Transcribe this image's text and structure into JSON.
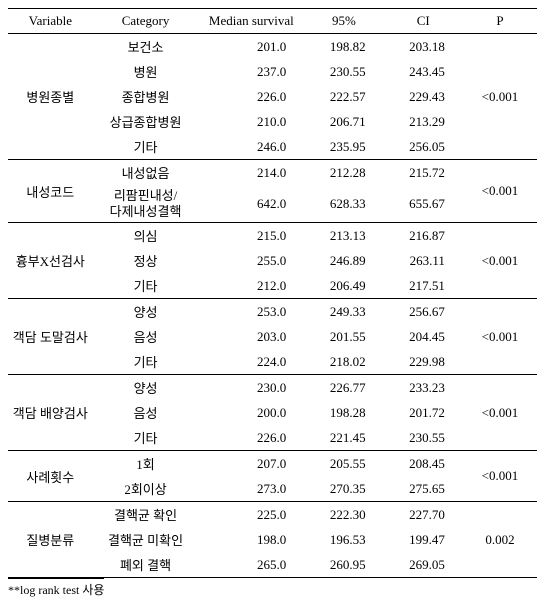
{
  "columns": {
    "variable": "Variable",
    "category": "Category",
    "median": "Median survival",
    "ci_low": "95%",
    "ci_high": "CI",
    "p": "P"
  },
  "groups": [
    {
      "variable": "병원종별",
      "p": "<0.001",
      "rows": [
        {
          "category": "보건소",
          "median": "201.0",
          "ci_low": "198.82",
          "ci_high": "203.18"
        },
        {
          "category": "병원",
          "median": "237.0",
          "ci_low": "230.55",
          "ci_high": "243.45"
        },
        {
          "category": "종합병원",
          "median": "226.0",
          "ci_low": "222.57",
          "ci_high": "229.43"
        },
        {
          "category": "상급종합병원",
          "median": "210.0",
          "ci_low": "206.71",
          "ci_high": "213.29"
        },
        {
          "category": "기타",
          "median": "246.0",
          "ci_low": "235.95",
          "ci_high": "256.05"
        }
      ]
    },
    {
      "variable": "내성코드",
      "p": "<0.001",
      "rows": [
        {
          "category": "내성없음",
          "median": "214.0",
          "ci_low": "212.28",
          "ci_high": "215.72"
        },
        {
          "category": "리팜핀내성/다제내성결핵",
          "median": "642.0",
          "ci_low": "628.33",
          "ci_high": "655.67"
        }
      ]
    },
    {
      "variable": "흉부X선검사",
      "p": "<0.001",
      "rows": [
        {
          "category": "의심",
          "median": "215.0",
          "ci_low": "213.13",
          "ci_high": "216.87"
        },
        {
          "category": "정상",
          "median": "255.0",
          "ci_low": "246.89",
          "ci_high": "263.11"
        },
        {
          "category": "기타",
          "median": "212.0",
          "ci_low": "206.49",
          "ci_high": "217.51"
        }
      ]
    },
    {
      "variable": "객담 도말검사",
      "p": "<0.001",
      "rows": [
        {
          "category": "양성",
          "median": "253.0",
          "ci_low": "249.33",
          "ci_high": "256.67"
        },
        {
          "category": "음성",
          "median": "203.0",
          "ci_low": "201.55",
          "ci_high": "204.45"
        },
        {
          "category": "기타",
          "median": "224.0",
          "ci_low": "218.02",
          "ci_high": "229.98"
        }
      ]
    },
    {
      "variable": "객담 배양검사",
      "p": "<0.001",
      "rows": [
        {
          "category": "양성",
          "median": "230.0",
          "ci_low": "226.77",
          "ci_high": "233.23"
        },
        {
          "category": "음성",
          "median": "200.0",
          "ci_low": "198.28",
          "ci_high": "201.72"
        },
        {
          "category": "기타",
          "median": "226.0",
          "ci_low": "221.45",
          "ci_high": "230.55"
        }
      ]
    },
    {
      "variable": "사례횟수",
      "p": "<0.001",
      "rows": [
        {
          "category": "1회",
          "median": "207.0",
          "ci_low": "205.55",
          "ci_high": "208.45"
        },
        {
          "category": "2회이상",
          "median": "273.0",
          "ci_low": "270.35",
          "ci_high": "275.65"
        }
      ]
    },
    {
      "variable": "질병분류",
      "p": "0.002",
      "rows": [
        {
          "category": "결핵균 확인",
          "median": "225.0",
          "ci_low": "222.30",
          "ci_high": "227.70"
        },
        {
          "category": "결핵균 미확인",
          "median": "198.0",
          "ci_low": "196.53",
          "ci_high": "199.47"
        },
        {
          "category": "폐외 결핵",
          "median": "265.0",
          "ci_low": "260.95",
          "ci_high": "269.05"
        }
      ]
    }
  ],
  "footnote": "**log rank test 사용"
}
